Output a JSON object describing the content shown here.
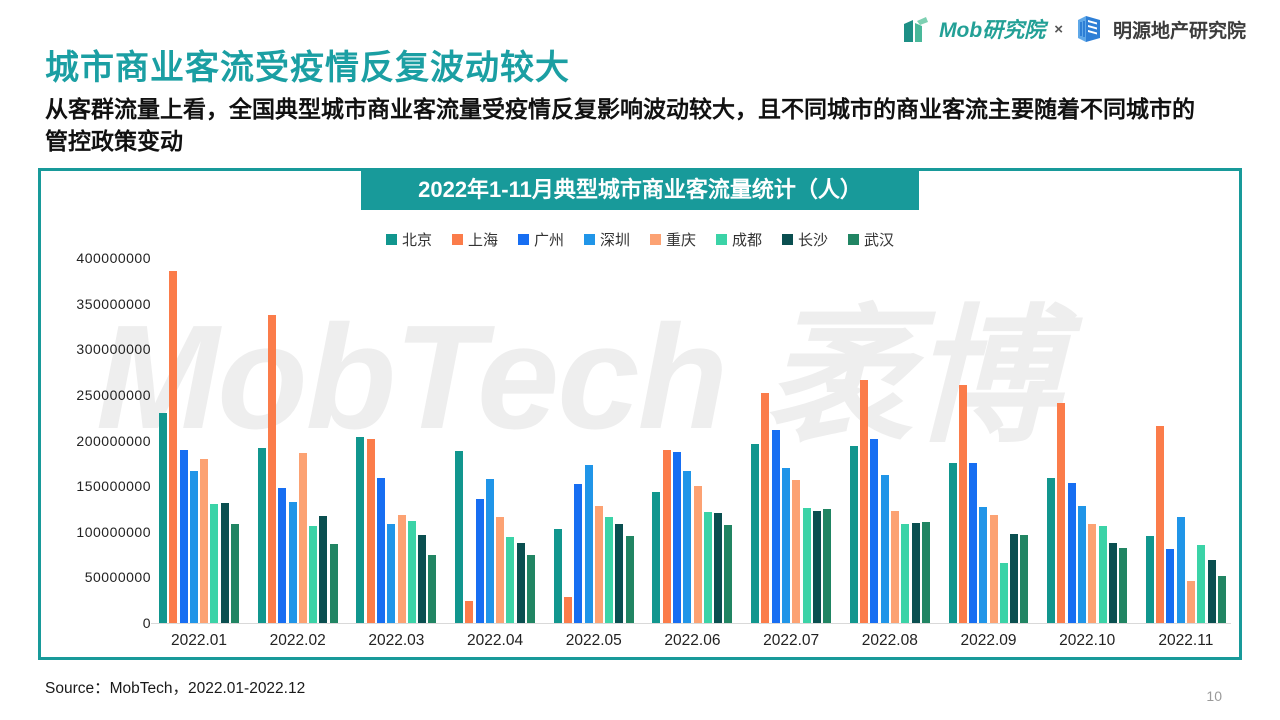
{
  "header": {
    "title": "城市商业客流受疫情反复波动较大",
    "subtitle": "从客群流量上看，全国典型城市商业客流量受疫情反复影响波动较大，且不同城市的商业客流主要随着不同城市的管控政策变动",
    "logos": {
      "mob": "Mob研究院",
      "separator": "×",
      "mingyuan": "明源地产研究院"
    }
  },
  "chart": {
    "watermark": "MobTech 袤博",
    "accent_color": "#189a9a"
  },
  "chart_data": {
    "type": "bar",
    "title": "2022年1-11月典型城市商业客流量统计（人）",
    "xlabel": "",
    "ylabel": "",
    "ylim": [
      0,
      400000000
    ],
    "ytick_step": 50000000,
    "ytick_labels_top_down": [
      "400000000",
      "350000000",
      "300000000",
      "250000000",
      "200000000",
      "150000000",
      "100000000",
      "50000000",
      "0"
    ],
    "grid": false,
    "legend_position": "top",
    "categories": [
      "2022.01",
      "2022.02",
      "2022.03",
      "2022.04",
      "2022.05",
      "2022.06",
      "2022.07",
      "2022.08",
      "2022.09",
      "2022.10",
      "2022.11"
    ],
    "series": [
      {
        "name": "北京",
        "color": "#11968e",
        "values": [
          230000000,
          192000000,
          204000000,
          189000000,
          103000000,
          144000000,
          196000000,
          194000000,
          175000000,
          159000000,
          95000000
        ]
      },
      {
        "name": "上海",
        "color": "#fb7c4a",
        "values": [
          386000000,
          338000000,
          202000000,
          24000000,
          28000000,
          190000000,
          252000000,
          266000000,
          261000000,
          241000000,
          216000000
        ]
      },
      {
        "name": "广州",
        "color": "#176ef2",
        "values": [
          190000000,
          148000000,
          159000000,
          136000000,
          152000000,
          187000000,
          211000000,
          202000000,
          175000000,
          153000000,
          81000000
        ]
      },
      {
        "name": "深圳",
        "color": "#2095e8",
        "values": [
          167000000,
          133000000,
          109000000,
          158000000,
          173000000,
          167000000,
          170000000,
          162000000,
          127000000,
          128000000,
          116000000
        ]
      },
      {
        "name": "重庆",
        "color": "#fca273",
        "values": [
          180000000,
          186000000,
          118000000,
          116000000,
          128000000,
          150000000,
          157000000,
          123000000,
          118000000,
          109000000,
          46000000
        ]
      },
      {
        "name": "成都",
        "color": "#3bd3a7",
        "values": [
          130000000,
          106000000,
          112000000,
          94000000,
          116000000,
          122000000,
          126000000,
          108000000,
          66000000,
          106000000,
          85000000
        ]
      },
      {
        "name": "长沙",
        "color": "#0a4f50",
        "values": [
          132000000,
          117000000,
          96000000,
          88000000,
          108000000,
          120000000,
          123000000,
          110000000,
          98000000,
          88000000,
          69000000
        ]
      },
      {
        "name": "武汉",
        "color": "#218563",
        "values": [
          109000000,
          87000000,
          75000000,
          75000000,
          95000000,
          107000000,
          125000000,
          111000000,
          96000000,
          82000000,
          51000000
        ]
      }
    ]
  },
  "footer": {
    "source": "Source：MobTech，2022.01-2022.12",
    "page_number": "10"
  }
}
